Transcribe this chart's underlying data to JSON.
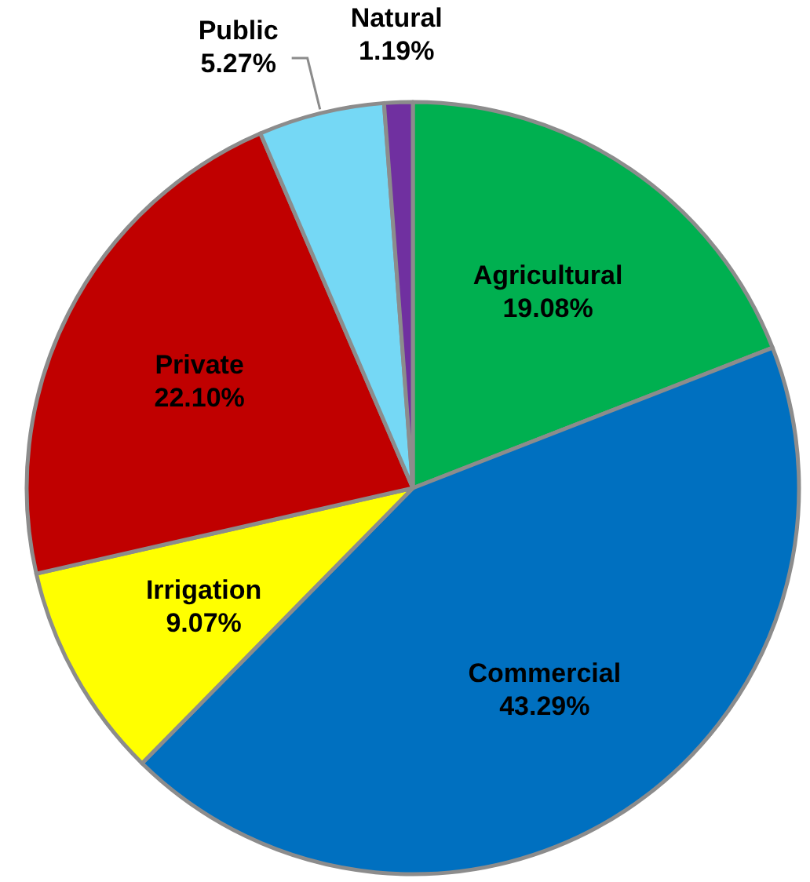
{
  "chart_data": {
    "type": "pie",
    "categories": [
      "Agricultural",
      "Commercial",
      "Irrigation",
      "Private",
      "Public",
      "Natural"
    ],
    "values": [
      19.08,
      43.29,
      9.07,
      22.1,
      5.27,
      1.19
    ],
    "value_labels": [
      "19.08%",
      "43.29%",
      "9.07%",
      "22.10%",
      "5.27%",
      "1.19%"
    ],
    "colors": [
      "#00b050",
      "#0070c0",
      "#ffff00",
      "#c00000",
      "#75d8f5",
      "#7030a0"
    ]
  }
}
